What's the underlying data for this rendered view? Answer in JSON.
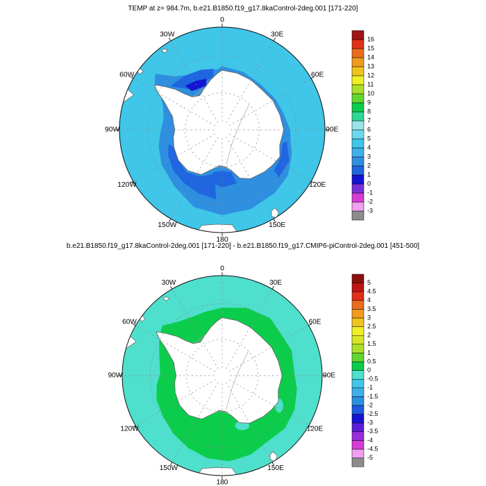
{
  "figures": [
    {
      "title": "TEMP at z= 984.7m, b.e21.B1850.f19_g17.8kaControl-2deg.001 [171-220]",
      "colorbar": {
        "labels_bottom_to_top": [
          "-3",
          "-2",
          "-1",
          "0",
          "1",
          "2",
          "3",
          "4",
          "5",
          "6",
          "7",
          "8",
          "9",
          "10",
          "11",
          "12",
          "13",
          "14",
          "15",
          "16"
        ],
        "colors_bottom_to_top": [
          "#8c8c8c",
          "#f0a0f0",
          "#d43cd4",
          "#7a30d8",
          "#1414d2",
          "#1f66e0",
          "#2e8fe0",
          "#3fb0ea",
          "#3fc6e8",
          "#6bd8ee",
          "#98e6e8",
          "#2ed895",
          "#0bcd4b",
          "#63d62e",
          "#aadf2a",
          "#f0f02a",
          "#f0c41e",
          "#f09c1e",
          "#ea6c1e",
          "#e03018",
          "#a01414"
        ]
      },
      "map_colors": {
        "ocean": "#3fc6e8",
        "coastal_band": "#2e8fe0",
        "deep_band": "#1f66e0",
        "navy_patch": "#1414d2",
        "land": "#ffffff",
        "coastline": "#666666",
        "graticule": "#8a8a8a"
      }
    },
    {
      "title": "b.e21.B1850.f19_g17.8kaControl-2deg.001 [171-220] - b.e21.B1850.f19_g17.CMIP6-piControl-2deg.001 [451-500]",
      "colorbar": {
        "labels_bottom_to_top": [
          "-5",
          "-4.5",
          "-4",
          "-3.5",
          "-3",
          "-2.5",
          "-2",
          "-1.5",
          "-1",
          "-0.5",
          "0",
          "0.5",
          "1",
          "1.5",
          "2",
          "2.5",
          "3",
          "3.5",
          "4",
          "4.5",
          "5"
        ],
        "colors_bottom_to_top": [
          "#8c8c8c",
          "#f0a0f0",
          "#d43cd4",
          "#9a2ed8",
          "#5a1ed8",
          "#1414d2",
          "#1f5ae0",
          "#2e8fe0",
          "#3fb0ea",
          "#3fc6e8",
          "#4fdfcd",
          "#0bcd4b",
          "#63d62e",
          "#aadf2a",
          "#d8e62a",
          "#f0f02a",
          "#f0c41e",
          "#f09c1e",
          "#ea6c1e",
          "#e03018",
          "#c01414",
          "#8c1010"
        ]
      },
      "map_colors": {
        "ocean": "#4fdfcd",
        "anomaly_region": "#0bcd4b",
        "land": "#ffffff",
        "coastline": "#666666",
        "graticule": "#8a8a8a"
      }
    }
  ],
  "lon_labels": [
    {
      "text": "0",
      "angle": 0
    },
    {
      "text": "30E",
      "angle": 30
    },
    {
      "text": "60E",
      "angle": 60
    },
    {
      "text": "90E",
      "angle": 90
    },
    {
      "text": "120E",
      "angle": 120
    },
    {
      "text": "150E",
      "angle": 150
    },
    {
      "text": "180",
      "angle": 180
    },
    {
      "text": "150W",
      "angle": 210
    },
    {
      "text": "120W",
      "angle": 240
    },
    {
      "text": "90W",
      "angle": 270
    },
    {
      "text": "60W",
      "angle": 300
    },
    {
      "text": "30W",
      "angle": 330
    }
  ],
  "chart_data": [
    {
      "type": "heatmap",
      "title": "TEMP at z= 984.7m, b.e21.B1850.f19_g17.8kaControl-2deg.001 [171-220]",
      "variable": "TEMP",
      "depth_label": "z= 984.7m",
      "case": "b.e21.B1850.f19_g17.8kaControl-2deg.001",
      "time_range": "[171-220]",
      "projection": "south polar stereographic, Antarctica centered",
      "lon_ticks": [
        "0",
        "30E",
        "60E",
        "90E",
        "120E",
        "150E",
        "180",
        "150W",
        "120W",
        "90W",
        "60W",
        "30W"
      ],
      "levels": [
        -3,
        -2,
        -1,
        0,
        1,
        2,
        3,
        4,
        5,
        6,
        7,
        8,
        9,
        10,
        11,
        12,
        13,
        14,
        15,
        16
      ],
      "legend_position": "right colorbar",
      "field_estimates": {
        "open_ocean": "4 to 5",
        "coastal_band_around_continent": "2 to 3",
        "deep_coastal_patches": "1 to 2",
        "weddell_peninsula_patch": "0 to 1",
        "continent": "no data (land mask, white)"
      }
    },
    {
      "type": "heatmap",
      "title": "b.e21.B1850.f19_g17.8kaControl-2deg.001 [171-220] - b.e21.B1850.f19_g17.CMIP6-piControl-2deg.001 [451-500]",
      "expression": "8kaControl minus CMIP6-piControl difference field",
      "projection": "south polar stereographic, Antarctica centered",
      "lon_ticks": [
        "0",
        "30E",
        "60E",
        "90E",
        "120E",
        "150E",
        "180",
        "150W",
        "120W",
        "90W",
        "60W",
        "30W"
      ],
      "levels": [
        -5,
        -4.5,
        -4,
        -3.5,
        -3,
        -2.5,
        -2,
        -1.5,
        -1,
        -0.5,
        0,
        0.5,
        1,
        1.5,
        2,
        2.5,
        3,
        3.5,
        4,
        4.5,
        5
      ],
      "legend_position": "right colorbar",
      "field_estimates": {
        "outer_open_ocean": "-0.5 to 0",
        "inner_ring_near_coast": "0 to 0.5",
        "continent": "no data (land mask, white)"
      }
    }
  ]
}
